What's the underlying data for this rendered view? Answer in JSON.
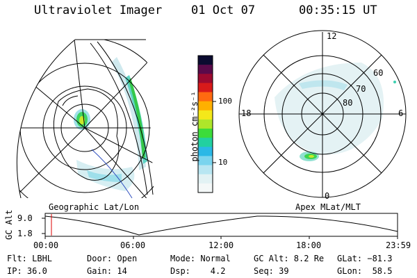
{
  "header": {
    "instrument": "Ultraviolet Imager",
    "date": "01 Oct 07",
    "time": "00:35:15 UT"
  },
  "left_panel": {
    "label": "Geographic Lat/Lon"
  },
  "right_panel": {
    "label": "Apex MLat/MLT",
    "mlt_labels": {
      "top": "12",
      "left": "18",
      "right": "6",
      "bottom": "0"
    },
    "lat_labels": [
      "60",
      "70",
      "80"
    ]
  },
  "colorbar": {
    "unit_label": "photon cm⁻²s⁻¹",
    "ticks": [
      "100",
      "10"
    ],
    "colors": [
      "#0b0b30",
      "#5a0a4a",
      "#9c0a30",
      "#d81a1a",
      "#ff6a10",
      "#ffb000",
      "#f4e81a",
      "#aee62a",
      "#3cdc3a",
      "#22d0a0",
      "#2ab8e6",
      "#7ad4ee",
      "#b8e6f2",
      "#e2f2f4",
      "#f4f8f8"
    ]
  },
  "timeline": {
    "ylabel": "GC Alt",
    "y_ticks": [
      "9.0",
      "1.8"
    ],
    "x_ticks": [
      "00:00",
      "06:00",
      "12:00",
      "18:00",
      "23:59"
    ],
    "cursor_color": "#dd0000"
  },
  "status": {
    "flt": "Flt: LBHL",
    "ip": "IP: 36.0",
    "door": "Door: Open",
    "gain": "Gain: 14",
    "mode": "Mode: Normal",
    "dsp": "Dsp:    4.2",
    "gcalt": "GC Alt: 8.2 Re",
    "seq": "Seq: 39",
    "glat": "GLat: −81.3",
    "glon": "GLon:  58.5"
  }
}
